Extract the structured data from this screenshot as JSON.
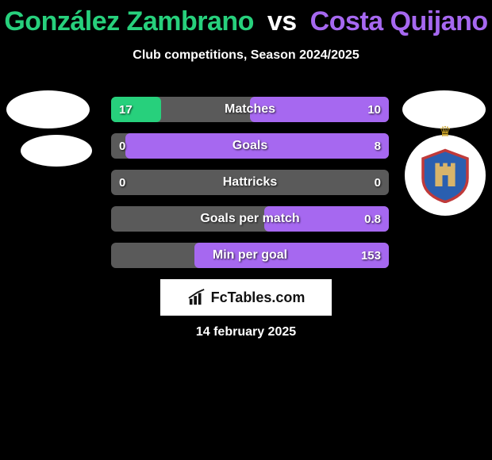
{
  "title": {
    "player1": "González Zambrano",
    "vs": "vs",
    "player2": "Costa Quijano",
    "player1_color": "#27d07c",
    "vs_color": "#ffffff",
    "player2_color": "#a668f0"
  },
  "subtitle": "Club competitions, Season 2024/2025",
  "date": "14 february 2025",
  "branding": "FcTables.com",
  "colors": {
    "left_fill": "#27d07c",
    "right_fill": "#a668f0",
    "row_bg": "#5a5a5a",
    "background": "#000000",
    "text": "#ffffff"
  },
  "bars": [
    {
      "label": "Matches",
      "left": "17",
      "right": "10",
      "left_pct": 18,
      "right_pct": 50
    },
    {
      "label": "Goals",
      "left": "0",
      "right": "8",
      "left_pct": 0,
      "right_pct": 95
    },
    {
      "label": "Hattricks",
      "left": "0",
      "right": "0",
      "left_pct": 0,
      "right_pct": 0
    },
    {
      "label": "Goals per match",
      "left": "",
      "right": "0.8",
      "left_pct": 0,
      "right_pct": 45
    },
    {
      "label": "Min per goal",
      "left": "",
      "right": "153",
      "left_pct": 0,
      "right_pct": 70
    }
  ],
  "club_right": {
    "shield_fill": "#2a5fb0",
    "shield_stroke": "#c03a3a",
    "castle_fill": "#d8b46a"
  }
}
